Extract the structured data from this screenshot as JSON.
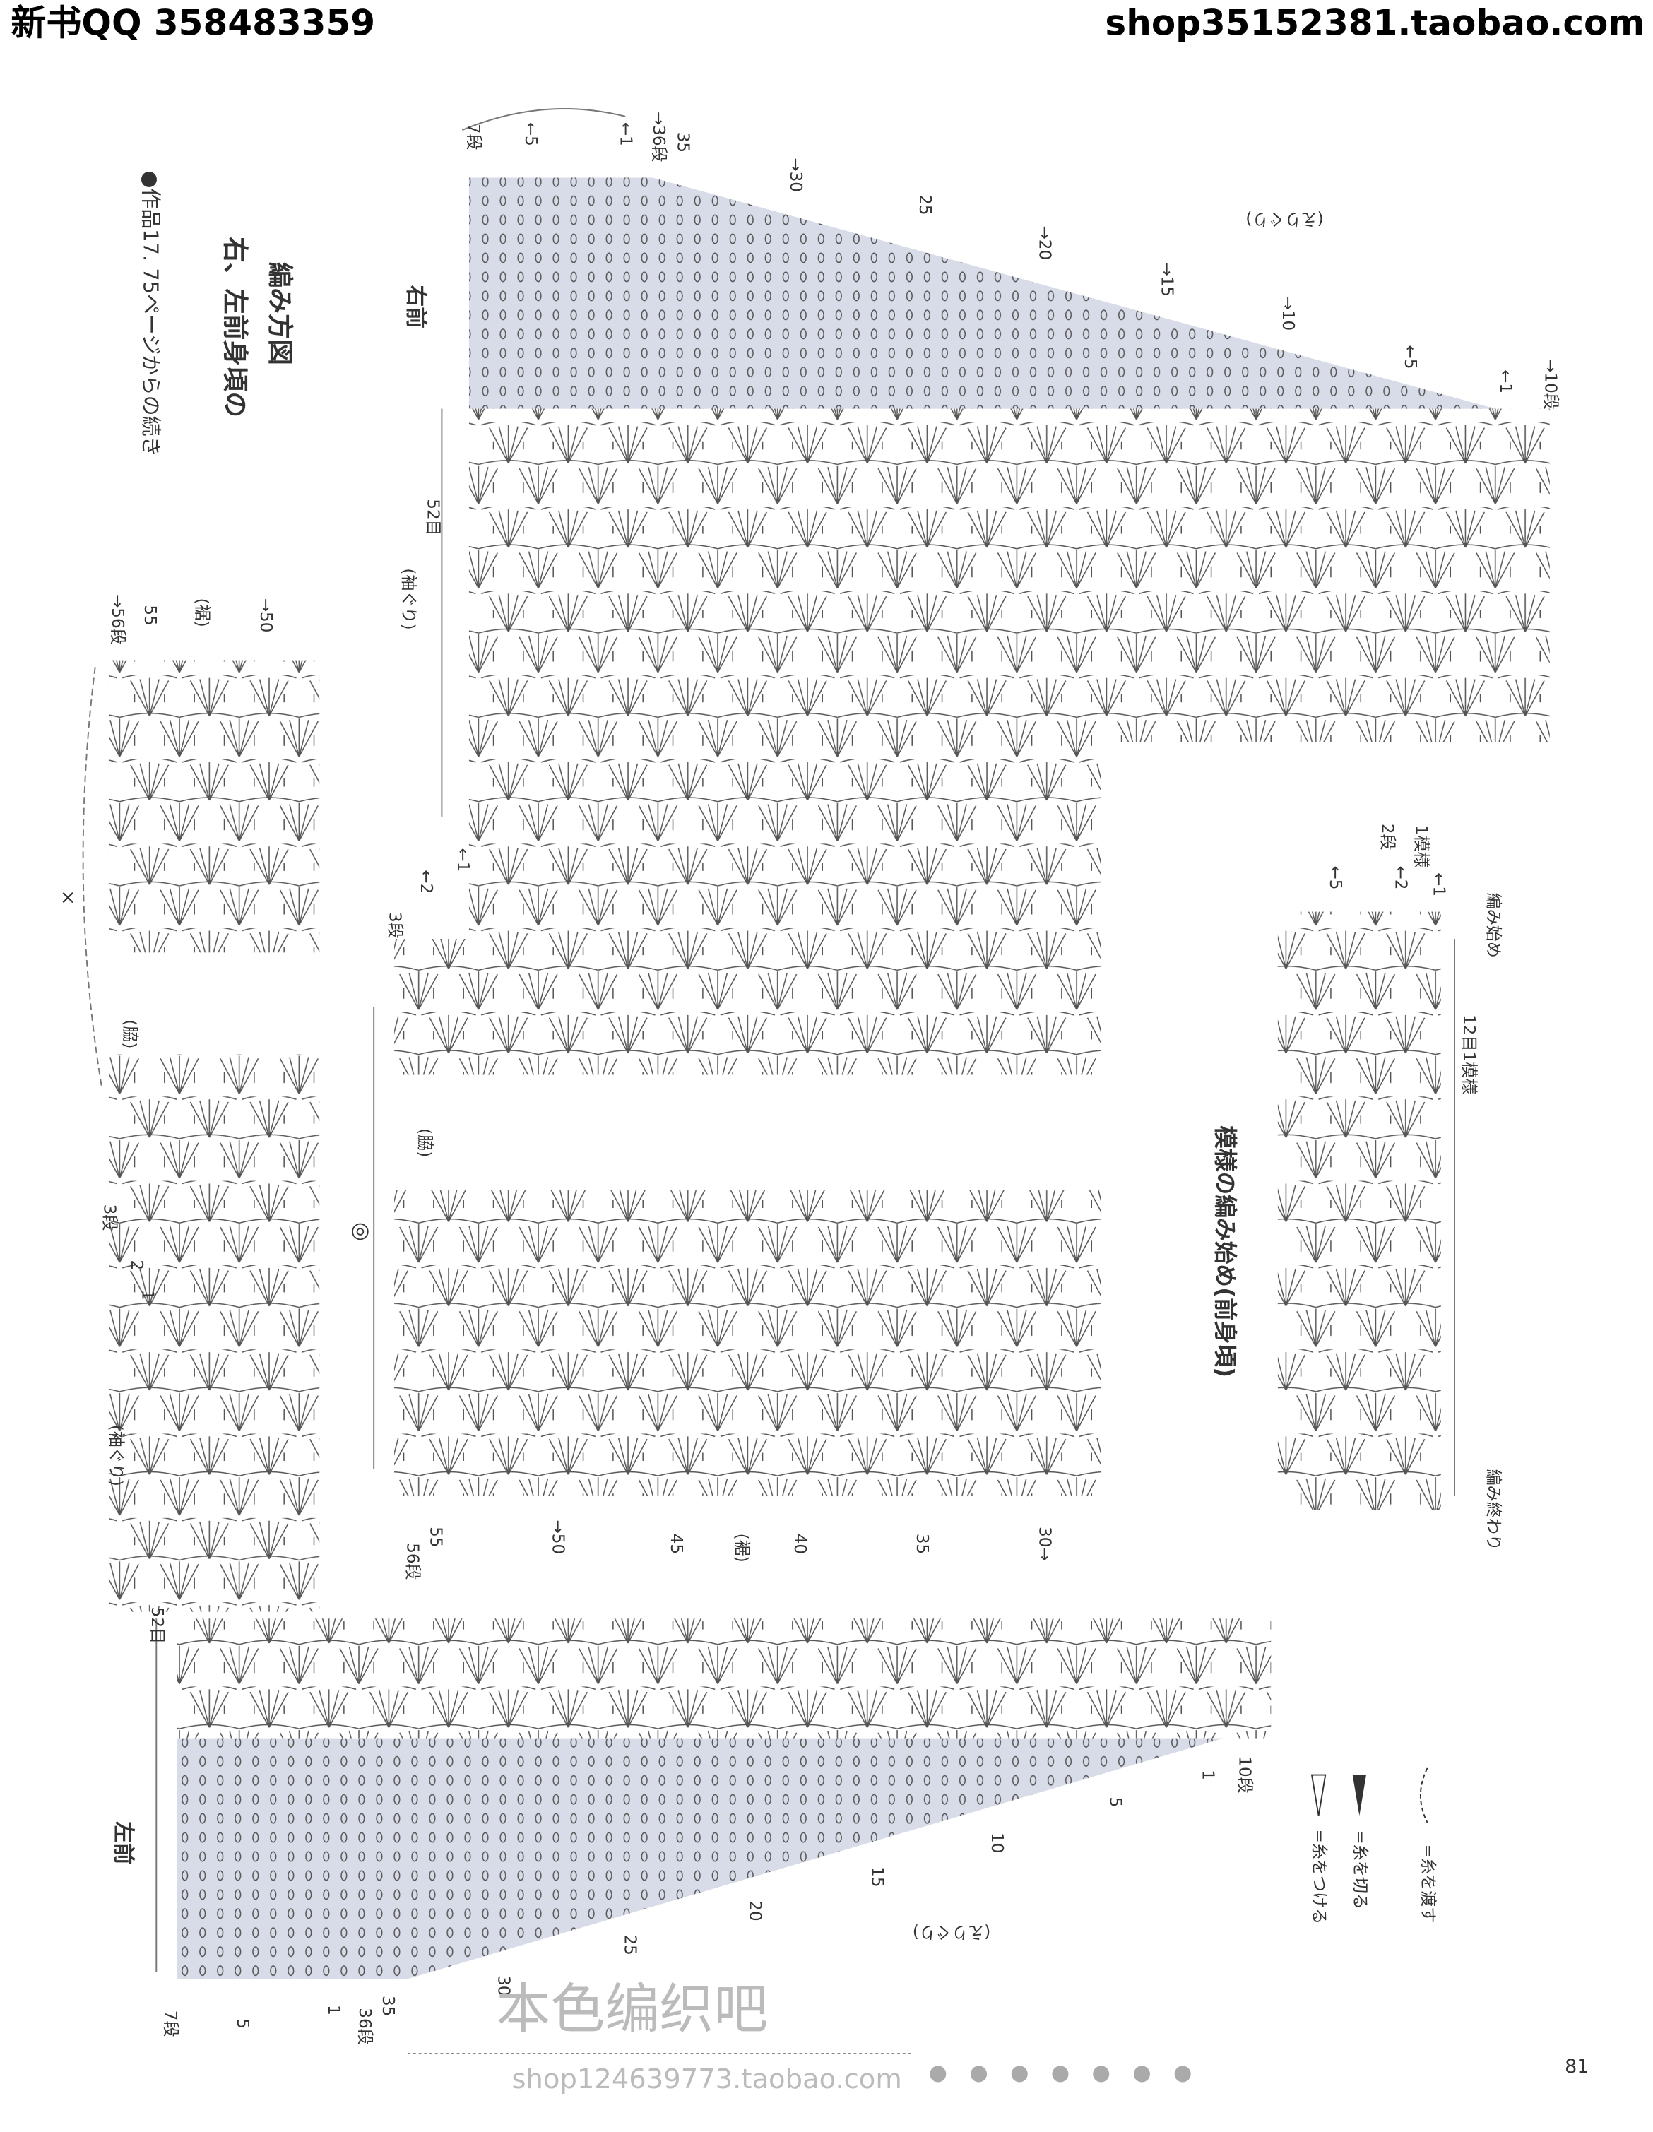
{
  "header": {
    "qq": "新书QQ 358483359",
    "shop": "shop35152381.taobao.com"
  },
  "title": {
    "note": "●作品17. 75ページからの続き",
    "line1": "右、左前身頃の",
    "line2": "編み方図"
  },
  "right_front": {
    "label": "右前",
    "neckline": "(えりぐり)",
    "armhole": "(袖ぐり)",
    "stitches": "52目",
    "side": "(脇)",
    "hem": "(裾)",
    "mark": "◎",
    "top_rows": [
      "7段",
      "←5",
      "←1",
      "→36段",
      "35",
      "→30",
      "25",
      "→20",
      "→15",
      "→10",
      "←5",
      "←1",
      "→10段"
    ],
    "armhole_rows": [
      "3段",
      "←2",
      "←1"
    ],
    "hem_rows": [
      "56段",
      "55",
      "→50",
      "45",
      "40",
      "35",
      "30→"
    ]
  },
  "left_front": {
    "label": "左前",
    "neckline": "(えりぐり)",
    "armhole": "(袖ぐり)",
    "stitches": "52目",
    "side": "(脇)",
    "hem": "(裾)",
    "mark": "×",
    "top_rows": [
      "→56段",
      "55",
      "→50"
    ],
    "armhole_rows": [
      "3段",
      "2",
      "1"
    ],
    "bottom_rows": [
      "7段",
      "5",
      "1",
      "36段",
      "35",
      "30",
      "25",
      "20",
      "15",
      "10",
      "5",
      "1",
      "10段"
    ]
  },
  "pattern_start": {
    "title": "模様の編み始め(前身頃)",
    "repeat": "12目1模様",
    "start": "編み始め",
    "end": "編み終わり",
    "rows": [
      "←5",
      "←2",
      "←1"
    ],
    "legend_rows": [
      "2段",
      "1模様"
    ]
  },
  "legend": [
    "=糸をつける",
    "=糸を切る",
    "=糸を渡す"
  ],
  "page_number": "81",
  "watermark": {
    "cn": "本色编织吧",
    "shop": "shop124639773.taobao.com"
  }
}
